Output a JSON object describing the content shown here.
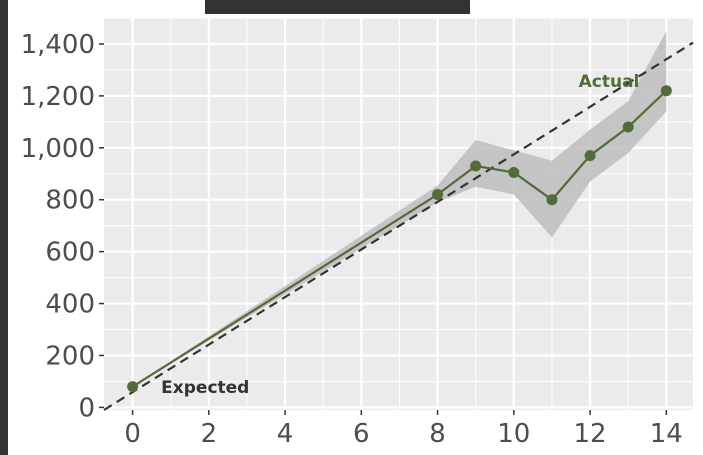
{
  "chart_data": {
    "type": "line",
    "title": "",
    "xlabel": "",
    "ylabel": "",
    "x_ticks": [
      "0",
      "2",
      "4",
      "6",
      "8",
      "10",
      "12",
      "14"
    ],
    "y_ticks": [
      "0",
      "200",
      "400",
      "600",
      "800",
      "1,000",
      "1,200",
      "1,400"
    ],
    "x_tick_values": [
      0,
      2,
      4,
      6,
      8,
      10,
      12,
      14
    ],
    "y_tick_values": [
      0,
      200,
      400,
      600,
      800,
      1000,
      1200,
      1400
    ],
    "xlim": [
      -0.75,
      14.7
    ],
    "ylim": [
      -10,
      1500
    ],
    "grid": true,
    "series": [
      {
        "name": "Actual",
        "style": "line-with-markers",
        "color": "#536b38",
        "x": [
          0,
          8,
          9,
          10,
          11,
          12,
          13,
          14
        ],
        "y": [
          80,
          820,
          930,
          905,
          800,
          970,
          1080,
          1220
        ]
      },
      {
        "name": "Expected",
        "style": "dashed",
        "color": "#333333",
        "x": [
          -0.75,
          14.7
        ],
        "y": [
          -10,
          1405
        ]
      }
    ],
    "band": {
      "color": "#bdbdbd",
      "x": [
        0,
        8,
        9,
        10,
        11,
        12,
        13,
        14
      ],
      "lower": [
        80,
        790,
        850,
        820,
        655,
        870,
        980,
        1140
      ],
      "upper": [
        80,
        855,
        1030,
        990,
        950,
        1070,
        1180,
        1450
      ]
    },
    "annotations": [
      {
        "text": "Actual",
        "x": 11.7,
        "y": 1235,
        "color": "#536b38"
      },
      {
        "text": "Expected",
        "x": 0.75,
        "y": 55,
        "color": "#333333"
      }
    ],
    "panel_background": "#ebebeb",
    "grid_color": "#ffffff"
  }
}
